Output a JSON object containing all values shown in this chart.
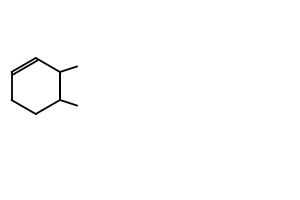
{
  "bg_color": "#ffffff",
  "line_color": "#000000",
  "line_width": 1.3,
  "font_size": 7.5,
  "figsize": [
    3.0,
    2.0
  ],
  "dpi": 100
}
